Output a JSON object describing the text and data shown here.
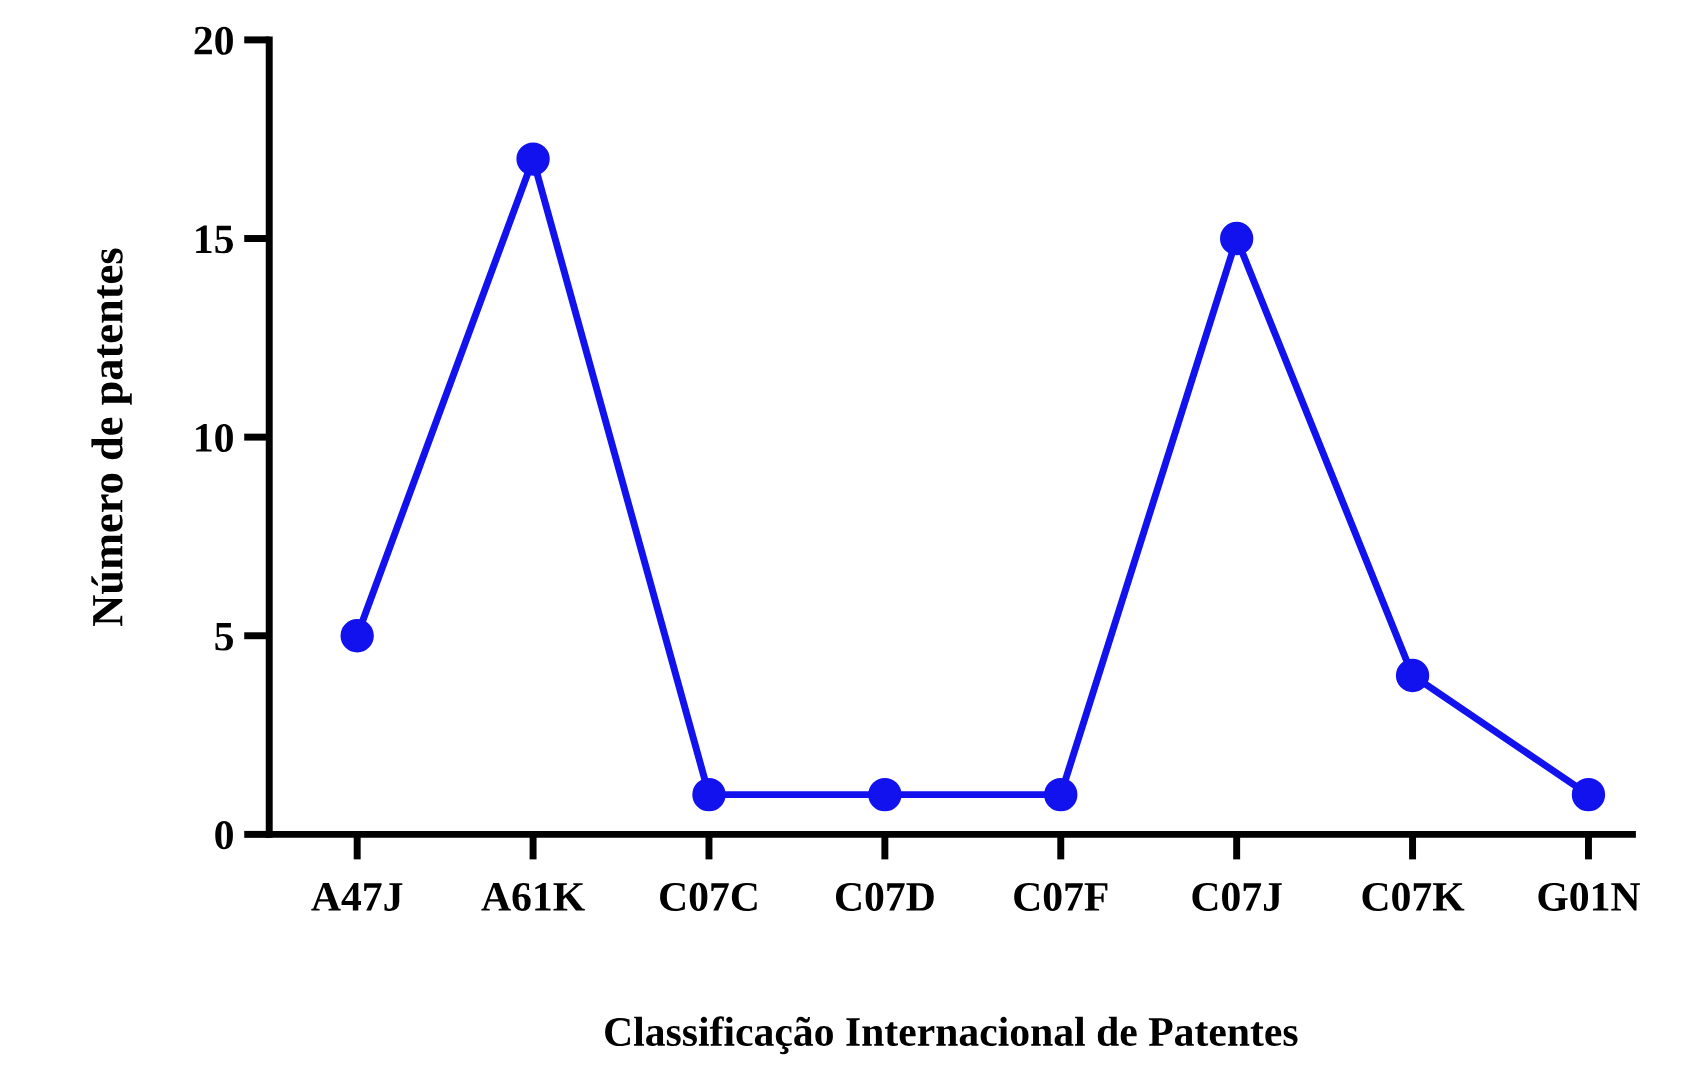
{
  "chart_data": {
    "type": "line",
    "xlabel": "Classificação Internacional de Patentes",
    "ylabel": "Número de patentes",
    "categories": [
      "A47J",
      "A61K",
      "C07C",
      "C07D",
      "C07F",
      "C07J",
      "C07K",
      "G01N"
    ],
    "series": [
      {
        "color": "#1212ee",
        "values": [
          5,
          17,
          1,
          1,
          1,
          15,
          4,
          1
        ]
      }
    ],
    "ylim": [
      0,
      20
    ],
    "yticks": [
      0,
      5,
      10,
      15,
      20
    ],
    "grid": false,
    "marker": "circle",
    "line_style": "solid"
  }
}
